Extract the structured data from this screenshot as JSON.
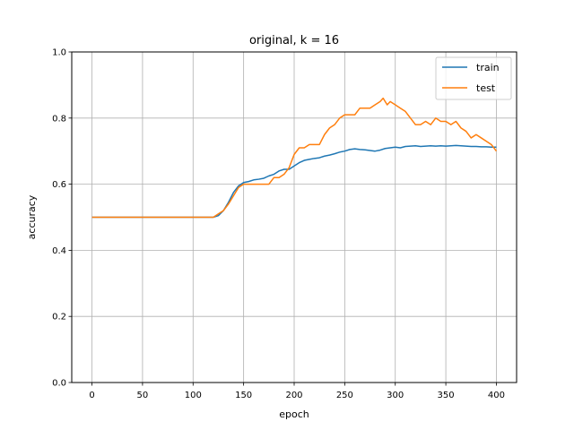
{
  "chart_data": {
    "type": "line",
    "title": "original, k = 16",
    "xlabel": "epoch",
    "ylabel": "accuracy",
    "xlim": [
      -20,
      420
    ],
    "ylim": [
      0.0,
      1.0
    ],
    "xticks": [
      0,
      50,
      100,
      150,
      200,
      250,
      300,
      350,
      400
    ],
    "yticks": [
      0.0,
      0.2,
      0.4,
      0.6,
      0.8,
      1.0
    ],
    "xtick_labels": [
      "0",
      "50",
      "100",
      "150",
      "200",
      "250",
      "300",
      "350",
      "400"
    ],
    "ytick_labels": [
      "0.0",
      "0.2",
      "0.4",
      "0.6",
      "0.8",
      "1.0"
    ],
    "grid": true,
    "legend_position": "top-right",
    "series": [
      {
        "name": "train",
        "color": "#1f77b4",
        "x": [
          0,
          20,
          40,
          60,
          80,
          100,
          115,
          120,
          125,
          130,
          135,
          140,
          145,
          150,
          155,
          160,
          165,
          170,
          175,
          180,
          185,
          190,
          195,
          200,
          205,
          210,
          215,
          220,
          225,
          230,
          235,
          240,
          245,
          250,
          255,
          260,
          265,
          270,
          275,
          280,
          285,
          290,
          295,
          300,
          305,
          310,
          315,
          320,
          325,
          330,
          335,
          340,
          345,
          350,
          355,
          360,
          365,
          370,
          375,
          380,
          385,
          390,
          395,
          400
        ],
        "values": [
          0.5,
          0.5,
          0.5,
          0.5,
          0.5,
          0.5,
          0.5,
          0.5,
          0.505,
          0.52,
          0.545,
          0.575,
          0.595,
          0.605,
          0.608,
          0.613,
          0.615,
          0.618,
          0.625,
          0.63,
          0.64,
          0.645,
          0.645,
          0.655,
          0.665,
          0.672,
          0.675,
          0.678,
          0.68,
          0.685,
          0.688,
          0.692,
          0.697,
          0.7,
          0.705,
          0.707,
          0.705,
          0.704,
          0.702,
          0.7,
          0.703,
          0.708,
          0.71,
          0.712,
          0.71,
          0.714,
          0.715,
          0.716,
          0.714,
          0.715,
          0.716,
          0.715,
          0.716,
          0.715,
          0.716,
          0.717,
          0.716,
          0.715,
          0.714,
          0.714,
          0.713,
          0.713,
          0.712,
          0.712
        ]
      },
      {
        "name": "test",
        "color": "#ff7f0e",
        "x": [
          0,
          20,
          40,
          60,
          80,
          100,
          115,
          120,
          125,
          130,
          135,
          140,
          145,
          150,
          155,
          160,
          165,
          170,
          175,
          180,
          185,
          190,
          195,
          200,
          205,
          210,
          215,
          220,
          225,
          230,
          235,
          240,
          245,
          250,
          255,
          260,
          265,
          270,
          275,
          280,
          285,
          288,
          292,
          295,
          300,
          305,
          310,
          315,
          320,
          325,
          330,
          335,
          340,
          345,
          350,
          355,
          360,
          365,
          370,
          375,
          380,
          385,
          390,
          395,
          400
        ],
        "values": [
          0.5,
          0.5,
          0.5,
          0.5,
          0.5,
          0.5,
          0.5,
          0.5,
          0.51,
          0.52,
          0.54,
          0.565,
          0.59,
          0.6,
          0.6,
          0.6,
          0.6,
          0.6,
          0.6,
          0.62,
          0.62,
          0.63,
          0.65,
          0.69,
          0.71,
          0.71,
          0.72,
          0.72,
          0.72,
          0.75,
          0.77,
          0.78,
          0.8,
          0.81,
          0.81,
          0.81,
          0.83,
          0.83,
          0.83,
          0.84,
          0.85,
          0.86,
          0.84,
          0.85,
          0.84,
          0.83,
          0.82,
          0.8,
          0.78,
          0.78,
          0.79,
          0.78,
          0.8,
          0.79,
          0.79,
          0.78,
          0.79,
          0.77,
          0.76,
          0.74,
          0.75,
          0.74,
          0.73,
          0.72,
          0.7
        ]
      }
    ]
  }
}
